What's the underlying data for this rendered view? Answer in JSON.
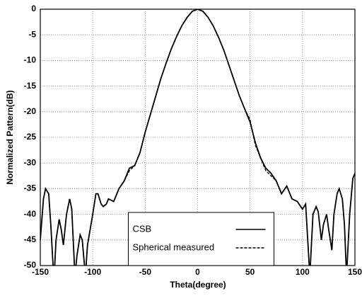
{
  "chart_data": {
    "type": "line",
    "xlabel": "Theta(degree)",
    "ylabel": "Normalized Pattern(dB)",
    "x": [
      -150,
      -147,
      -145,
      -142,
      -140,
      -137,
      -135,
      -132,
      -130,
      -128,
      -125,
      -122,
      -120,
      -117,
      -115,
      -112,
      -110,
      -107,
      -105,
      -100,
      -97,
      -95,
      -92,
      -90,
      -87,
      -85,
      -80,
      -77,
      -75,
      -70,
      -65,
      -60,
      -55,
      -50,
      -45,
      -40,
      -35,
      -30,
      -25,
      -20,
      -15,
      -10,
      -5,
      0,
      5,
      10,
      15,
      20,
      25,
      30,
      35,
      40,
      45,
      50,
      55,
      60,
      65,
      70,
      75,
      80,
      85,
      90,
      95,
      100,
      103,
      107,
      110,
      113,
      115,
      118,
      120,
      123,
      125,
      128,
      130,
      133,
      135,
      138,
      140,
      142,
      145,
      148,
      150
    ],
    "series": [
      {
        "name": "CSB",
        "color": "#000000",
        "linestyle": "solid",
        "values": [
          -45,
          -37,
          -35,
          -36,
          -42,
          -53,
          -45,
          -41,
          -43,
          -46,
          -40,
          -37,
          -39,
          -52,
          -48,
          -44,
          -45,
          -52,
          -46,
          -40,
          -36,
          -36,
          -38,
          -38.5,
          -38,
          -37,
          -37.5,
          -36,
          -35,
          -33.5,
          -31,
          -30.5,
          -28,
          -24,
          -20.5,
          -17,
          -13.5,
          -10.5,
          -7.7,
          -5.3,
          -3.2,
          -1.6,
          -0.4,
          0,
          -0.4,
          -1.6,
          -3.3,
          -5.5,
          -8,
          -11,
          -14,
          -17,
          -19.5,
          -22,
          -26,
          -29,
          -31,
          -32,
          -33.5,
          -36,
          -34.5,
          -37,
          -37.5,
          -39,
          -38,
          -52,
          -40,
          -38.5,
          -39.5,
          -45,
          -42,
          -40,
          -43,
          -47,
          -40,
          -36,
          -35,
          -37,
          -42,
          -52,
          -40,
          -33,
          -32
        ]
      },
      {
        "name": "Spherical measured",
        "color": "#000000",
        "linestyle": "dashed",
        "values": [
          -45,
          -37,
          -35,
          -36,
          -42,
          -53,
          -45,
          -41,
          -43,
          -46,
          -40,
          -37,
          -39,
          -52,
          -48,
          -44,
          -45,
          -52,
          -46,
          -40,
          -36,
          -36,
          -38,
          -38.5,
          -38,
          -37,
          -37.5,
          -36,
          -35,
          -33.5,
          -31.5,
          -30.5,
          -28,
          -24,
          -20.5,
          -17,
          -13.5,
          -10.5,
          -7.7,
          -5.3,
          -3.2,
          -1.6,
          -0.4,
          0,
          -0.4,
          -1.6,
          -3.3,
          -5.5,
          -8,
          -11,
          -14,
          -17,
          -19.5,
          -21.5,
          -26.5,
          -29,
          -31.5,
          -32.5,
          -33.5,
          -36,
          -34.5,
          -37,
          -37.5,
          -39,
          -38,
          -52,
          -40,
          -38.5,
          -39.5,
          -45,
          -42,
          -40,
          -43,
          -47,
          -40,
          -36,
          -35,
          -37,
          -42,
          -52,
          -40,
          -33,
          -32
        ]
      }
    ],
    "xlim": [
      -150,
      150
    ],
    "xticks": [
      -150,
      -100,
      -50,
      0,
      50,
      100,
      150
    ],
    "ylim": [
      -50,
      0
    ],
    "yticks": [
      0,
      -5,
      -10,
      -15,
      -20,
      -25,
      -30,
      -35,
      -40,
      -45,
      -50
    ],
    "grid": true,
    "legend": "lower center"
  }
}
